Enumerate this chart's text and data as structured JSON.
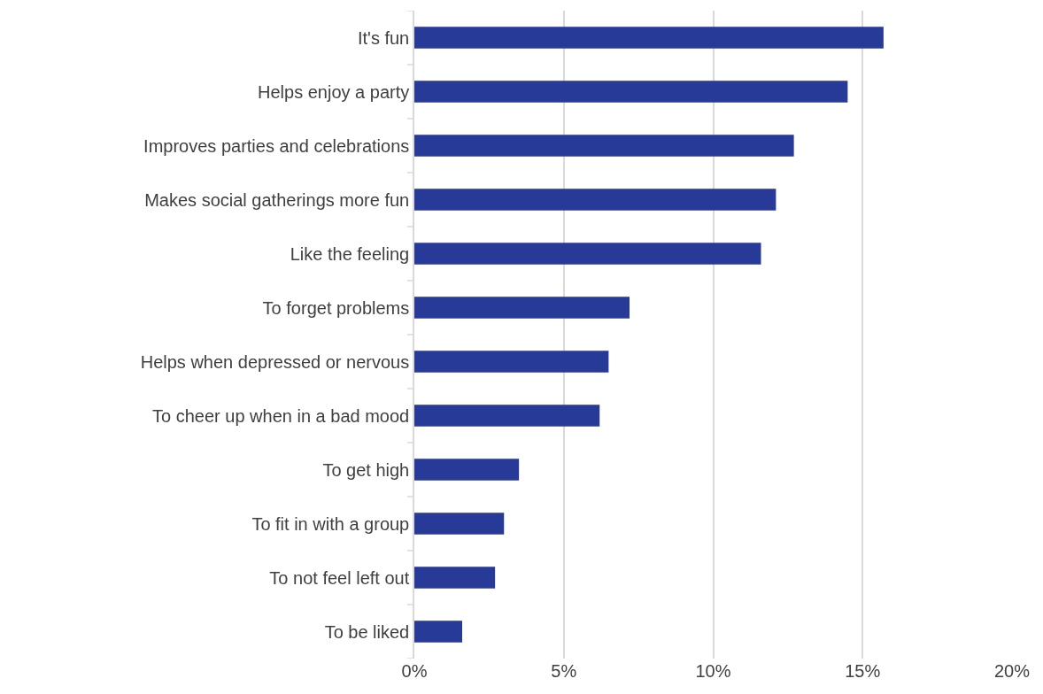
{
  "chart_data": {
    "type": "bar",
    "orientation": "horizontal",
    "categories": [
      "It's fun",
      "Helps enjoy a party",
      "Improves parties and celebrations",
      "Makes social gatherings more fun",
      "Like the feeling",
      "To forget problems",
      "Helps when depressed or nervous",
      "To cheer up when in a bad mood",
      "To get high",
      "To fit in with a group",
      "To not feel left out",
      "To be liked"
    ],
    "values": [
      15.7,
      14.5,
      12.7,
      12.1,
      11.6,
      7.2,
      6.5,
      6.2,
      3.5,
      3.0,
      2.7,
      1.6
    ],
    "color": "#283a97",
    "xlim": [
      0,
      20
    ],
    "xticks": [
      {
        "value": 0,
        "label": "0%"
      },
      {
        "value": 5,
        "label": "5%"
      },
      {
        "value": 10,
        "label": "10%"
      },
      {
        "value": 15,
        "label": "15%"
      },
      {
        "value": 20,
        "label": "20%"
      }
    ],
    "grid": "x"
  }
}
